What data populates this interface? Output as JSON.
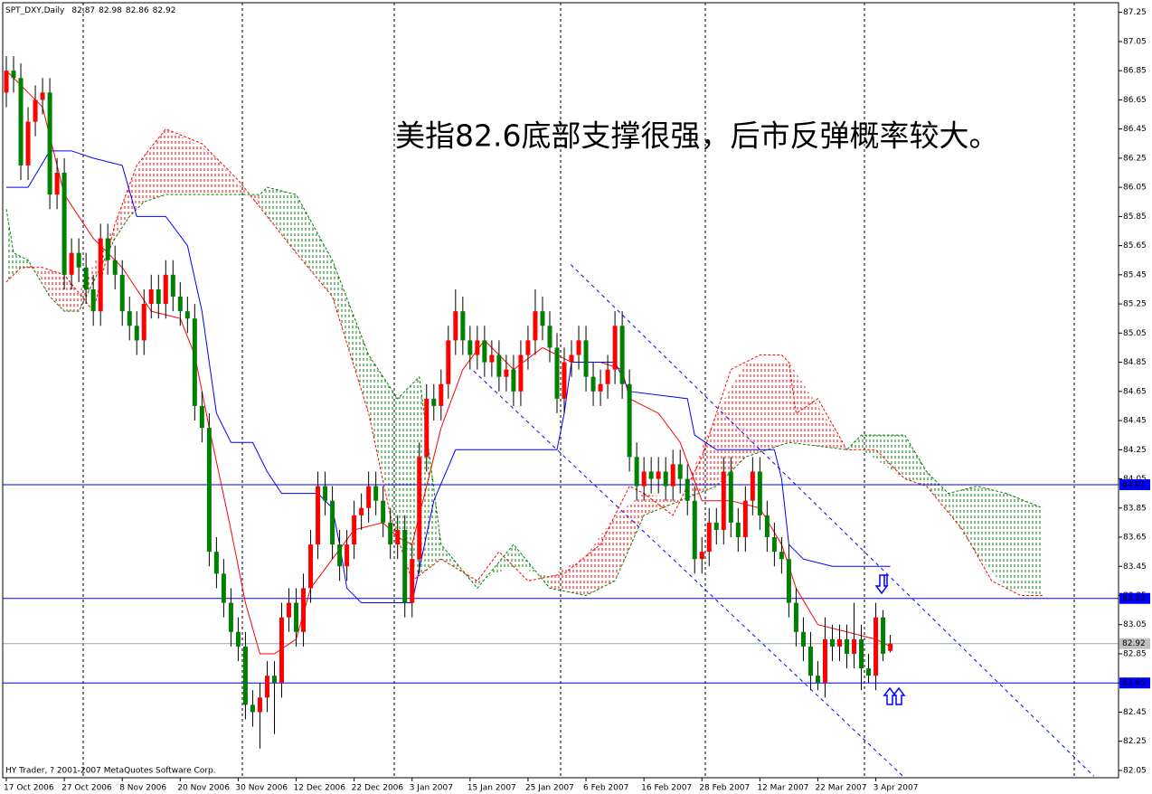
{
  "chart_data": {
    "type": "candlestick",
    "symbol": "SPT_DXY,Daily",
    "annotation": "美指82.6底部支撑很强，后市反弹概率较大。",
    "annotation_color": "#3a3ad8",
    "footer": "HY Trader, ? 2001-2007 MetaQuotes Software Corp.",
    "up_color": "#ff0000",
    "down_color": "#008000",
    "ylim": [
      82.0,
      87.31
    ],
    "yticks": [
      87.25,
      87.05,
      86.85,
      86.65,
      86.45,
      86.25,
      86.05,
      85.85,
      85.65,
      85.45,
      85.25,
      85.05,
      84.85,
      84.65,
      84.45,
      84.25,
      84.05,
      83.85,
      83.65,
      83.45,
      83.25,
      83.05,
      82.85,
      82.65,
      82.45,
      82.25,
      82.05
    ],
    "categories": [
      "17 Oct 2006",
      null,
      null,
      null,
      null,
      null,
      null,
      null,
      "27 Oct 2006",
      null,
      null,
      null,
      null,
      null,
      null,
      null,
      "8 Nov 2006",
      null,
      null,
      null,
      null,
      null,
      null,
      null,
      "20 Nov 2006",
      null,
      null,
      null,
      null,
      null,
      null,
      null,
      "30 Nov 2006",
      null,
      null,
      null,
      null,
      null,
      null,
      null,
      "12 Dec 2006",
      null,
      null,
      null,
      null,
      null,
      null,
      null,
      "22 Dec 2006",
      null,
      null,
      null,
      null,
      null,
      null,
      null,
      "3 Jan 2007",
      null,
      null,
      null,
      null,
      null,
      null,
      null,
      "15 Jan 2007",
      null,
      null,
      null,
      null,
      null,
      null,
      null,
      "25 Jan 2007",
      null,
      null,
      null,
      null,
      null,
      null,
      null,
      "6 Feb 2007",
      null,
      null,
      null,
      null,
      null,
      null,
      null,
      "16 Feb 2007",
      null,
      null,
      null,
      null,
      null,
      null,
      null,
      "28 Feb 2007",
      null,
      null,
      null,
      null,
      null,
      null,
      null,
      "12 Mar 2007",
      null,
      null,
      null,
      null,
      null,
      null,
      null,
      "22 Mar 2007",
      null,
      null,
      null,
      null,
      null,
      null,
      null,
      "3 Apr 2007",
      null,
      null
    ],
    "ohlc": [
      [
        86.7,
        86.95,
        86.6,
        86.85
      ],
      [
        86.85,
        86.95,
        86.7,
        86.8
      ],
      [
        86.8,
        86.9,
        86.1,
        86.2
      ],
      [
        86.2,
        86.6,
        86.1,
        86.5
      ],
      [
        86.5,
        86.75,
        86.4,
        86.65
      ],
      [
        86.65,
        86.8,
        86.55,
        86.7
      ],
      [
        86.7,
        86.8,
        85.9,
        86.0
      ],
      [
        86.0,
        86.25,
        85.9,
        86.15
      ],
      [
        86.15,
        86.25,
        85.35,
        85.45
      ],
      [
        85.45,
        85.7,
        85.35,
        85.6
      ],
      [
        85.6,
        85.7,
        85.4,
        85.5
      ],
      [
        85.5,
        85.6,
        85.25,
        85.35
      ],
      [
        85.35,
        85.45,
        85.1,
        85.2
      ],
      [
        85.2,
        85.8,
        85.1,
        85.7
      ],
      [
        85.7,
        85.8,
        85.45,
        85.55
      ],
      [
        85.55,
        85.65,
        85.35,
        85.45
      ],
      [
        85.45,
        85.55,
        85.1,
        85.2
      ],
      [
        85.2,
        85.3,
        85.0,
        85.1
      ],
      [
        85.1,
        85.2,
        84.9,
        85.0
      ],
      [
        85.0,
        85.35,
        84.9,
        85.25
      ],
      [
        85.25,
        85.45,
        85.15,
        85.35
      ],
      [
        85.35,
        85.45,
        85.15,
        85.25
      ],
      [
        85.25,
        85.55,
        85.15,
        85.45
      ],
      [
        85.45,
        85.55,
        85.2,
        85.3
      ],
      [
        85.3,
        85.4,
        85.1,
        85.2
      ],
      [
        85.2,
        85.3,
        85.05,
        85.15
      ],
      [
        85.15,
        85.25,
        84.45,
        84.55
      ],
      [
        84.55,
        84.65,
        84.3,
        84.4
      ],
      [
        84.4,
        84.5,
        83.45,
        83.55
      ],
      [
        83.55,
        83.65,
        83.3,
        83.4
      ],
      [
        83.4,
        83.5,
        83.1,
        83.2
      ],
      [
        83.2,
        83.3,
        82.9,
        83.0
      ],
      [
        83.0,
        83.1,
        82.8,
        82.9
      ],
      [
        82.9,
        83.0,
        82.4,
        82.5
      ],
      [
        82.5,
        82.6,
        82.35,
        82.45
      ],
      [
        82.45,
        82.65,
        82.2,
        82.55
      ],
      [
        82.55,
        82.8,
        82.45,
        82.7
      ],
      [
        82.7,
        82.8,
        82.3,
        82.65
      ],
      [
        82.65,
        83.2,
        82.55,
        83.1
      ],
      [
        83.1,
        83.3,
        83.0,
        83.2
      ],
      [
        83.2,
        83.3,
        82.9,
        83.0
      ],
      [
        83.0,
        83.4,
        82.9,
        83.3
      ],
      [
        83.3,
        83.7,
        83.2,
        83.6
      ],
      [
        83.6,
        84.1,
        83.5,
        84.0
      ],
      [
        84.0,
        84.1,
        83.8,
        83.9
      ],
      [
        83.9,
        84.0,
        83.5,
        83.6
      ],
      [
        83.6,
        83.7,
        83.35,
        83.45
      ],
      [
        83.45,
        83.7,
        83.35,
        83.6
      ],
      [
        83.6,
        83.9,
        83.5,
        83.8
      ],
      [
        83.8,
        83.95,
        83.7,
        83.85
      ],
      [
        83.85,
        84.1,
        83.75,
        84.0
      ],
      [
        84.0,
        84.1,
        83.8,
        83.9
      ],
      [
        83.9,
        84.0,
        83.65,
        83.75
      ],
      [
        83.75,
        83.85,
        83.5,
        83.6
      ],
      [
        83.6,
        83.8,
        83.5,
        83.7
      ],
      [
        83.7,
        83.8,
        83.1,
        83.2
      ],
      [
        83.2,
        83.6,
        83.1,
        83.5
      ],
      [
        83.5,
        84.3,
        83.4,
        84.2
      ],
      [
        84.2,
        84.7,
        84.1,
        84.6
      ],
      [
        84.6,
        84.7,
        84.45,
        84.55
      ],
      [
        84.55,
        84.8,
        84.45,
        84.7
      ],
      [
        84.7,
        85.1,
        84.6,
        85.0
      ],
      [
        85.0,
        85.35,
        84.9,
        85.2
      ],
      [
        85.2,
        85.3,
        84.9,
        85.0
      ],
      [
        85.0,
        85.1,
        84.8,
        84.9
      ],
      [
        84.9,
        85.1,
        84.8,
        85.0
      ],
      [
        85.0,
        85.1,
        84.75,
        84.85
      ],
      [
        84.85,
        85.0,
        84.75,
        84.9
      ],
      [
        84.9,
        85.0,
        84.65,
        84.75
      ],
      [
        84.75,
        84.9,
        84.65,
        84.8
      ],
      [
        84.8,
        84.9,
        84.55,
        84.65
      ],
      [
        84.65,
        85.0,
        84.55,
        84.9
      ],
      [
        84.9,
        85.1,
        84.8,
        85.0
      ],
      [
        85.0,
        85.35,
        84.9,
        85.2
      ],
      [
        85.2,
        85.3,
        85.0,
        85.1
      ],
      [
        85.1,
        85.2,
        84.85,
        84.95
      ],
      [
        84.95,
        85.05,
        84.5,
        84.6
      ],
      [
        84.6,
        84.95,
        84.5,
        84.85
      ],
      [
        84.85,
        85.0,
        84.75,
        84.9
      ],
      [
        84.9,
        85.1,
        84.8,
        85.0
      ],
      [
        85.0,
        85.1,
        84.65,
        84.75
      ],
      [
        84.75,
        84.85,
        84.55,
        84.65
      ],
      [
        84.65,
        84.8,
        84.55,
        84.7
      ],
      [
        84.7,
        84.9,
        84.6,
        84.8
      ],
      [
        84.8,
        85.2,
        84.7,
        85.1
      ],
      [
        85.1,
        85.2,
        84.6,
        84.7
      ],
      [
        84.7,
        84.8,
        84.1,
        84.2
      ],
      [
        84.2,
        84.3,
        83.9,
        84.0
      ],
      [
        84.0,
        84.2,
        83.9,
        84.1
      ],
      [
        84.1,
        84.2,
        83.95,
        84.05
      ],
      [
        84.05,
        84.2,
        83.95,
        84.1
      ],
      [
        84.1,
        84.2,
        83.9,
        84.0
      ],
      [
        84.0,
        84.25,
        83.9,
        84.15
      ],
      [
        84.15,
        84.25,
        83.95,
        84.05
      ],
      [
        84.05,
        84.15,
        83.8,
        83.9
      ],
      [
        83.9,
        84.0,
        83.4,
        83.5
      ],
      [
        83.5,
        83.65,
        83.4,
        83.55
      ],
      [
        83.55,
        83.85,
        83.45,
        83.75
      ],
      [
        83.75,
        83.85,
        83.6,
        83.7
      ],
      [
        83.7,
        84.2,
        83.6,
        84.1
      ],
      [
        84.1,
        84.2,
        83.65,
        83.75
      ],
      [
        83.75,
        83.85,
        83.55,
        83.65
      ],
      [
        83.65,
        84.0,
        83.55,
        83.9
      ],
      [
        83.9,
        84.2,
        83.8,
        84.1
      ],
      [
        84.1,
        84.2,
        83.7,
        83.8
      ],
      [
        83.8,
        83.9,
        83.55,
        83.65
      ],
      [
        83.65,
        83.75,
        83.45,
        83.55
      ],
      [
        83.55,
        83.65,
        83.4,
        83.5
      ],
      [
        83.5,
        83.6,
        83.1,
        83.2
      ],
      [
        83.2,
        83.3,
        82.9,
        83.0
      ],
      [
        83.0,
        83.1,
        82.8,
        82.9
      ],
      [
        82.9,
        83.0,
        82.6,
        82.7
      ],
      [
        82.7,
        82.8,
        82.6,
        82.65
      ],
      [
        82.65,
        83.1,
        82.55,
        82.95
      ],
      [
        82.95,
        83.05,
        82.8,
        82.9
      ],
      [
        82.9,
        83.05,
        82.8,
        82.95
      ],
      [
        82.95,
        83.05,
        82.75,
        82.85
      ],
      [
        82.85,
        83.2,
        82.75,
        82.95
      ],
      [
        82.95,
        83.05,
        82.6,
        82.75
      ],
      [
        82.75,
        82.85,
        82.65,
        82.7
      ],
      [
        82.7,
        83.2,
        82.6,
        83.1
      ],
      [
        83.1,
        83.15,
        82.8,
        82.85
      ],
      [
        82.87,
        82.98,
        82.86,
        82.92
      ]
    ],
    "indicators": [
      {
        "color": "#ff0000",
        "x": [
          0,
          5,
          8,
          12,
          16,
          20,
          24,
          26,
          28,
          31,
          33,
          35,
          37,
          40,
          42,
          45,
          48,
          52,
          54,
          56,
          58,
          60,
          63,
          66,
          70,
          74,
          78,
          82,
          85,
          86,
          90,
          93,
          96,
          100,
          104,
          107,
          109,
          112,
          116,
          120,
          122
        ],
        "values": [
          86.85,
          86.6,
          86.0,
          85.7,
          85.5,
          85.2,
          85.15,
          84.9,
          84.4,
          83.7,
          83.2,
          82.85,
          82.85,
          82.95,
          83.3,
          83.5,
          83.7,
          83.75,
          83.65,
          83.6,
          84.0,
          84.4,
          84.8,
          85.0,
          84.8,
          84.95,
          84.85,
          84.85,
          84.8,
          84.6,
          84.5,
          84.3,
          83.9,
          83.9,
          83.85,
          83.6,
          83.3,
          83.05,
          83.0,
          82.95,
          82.9
        ]
      },
      {
        "color": "#0000ff",
        "x": [
          0,
          3,
          6,
          9,
          12,
          16,
          18,
          22,
          25,
          27,
          29,
          31,
          34,
          36,
          38,
          43,
          45,
          46,
          47,
          49,
          54,
          56,
          59,
          62,
          70,
          76,
          77,
          78,
          84,
          86,
          94,
          95,
          98,
          106,
          107,
          108,
          110,
          114,
          118,
          122
        ],
        "values": [
          86.05,
          86.05,
          86.3,
          86.3,
          86.25,
          86.2,
          85.85,
          85.85,
          85.65,
          85.2,
          84.5,
          84.3,
          84.3,
          84.1,
          83.95,
          83.95,
          83.85,
          83.6,
          83.3,
          83.2,
          83.2,
          83.2,
          83.9,
          84.25,
          84.25,
          84.25,
          84.5,
          84.85,
          84.85,
          84.65,
          84.6,
          84.35,
          84.25,
          84.25,
          84.05,
          83.6,
          83.5,
          83.45,
          83.45,
          83.45
        ]
      }
    ],
    "cloud": {
      "span_a": {
        "color": "#008000",
        "x": [
          0,
          1,
          3,
          6,
          8,
          10,
          15,
          17,
          19,
          22,
          28,
          35,
          36,
          40,
          45,
          50,
          54,
          57,
          60,
          65,
          70,
          75,
          80,
          84,
          88,
          93,
          98,
          102,
          108,
          116,
          118,
          124,
          127,
          130,
          134,
          138,
          143
        ],
        "values": [
          85.9,
          85.6,
          85.55,
          85.3,
          85.2,
          85.2,
          85.7,
          85.85,
          85.95,
          86.0,
          86.0,
          86.0,
          86.05,
          86.0,
          85.55,
          84.9,
          84.6,
          84.75,
          83.6,
          83.3,
          83.6,
          83.3,
          83.25,
          83.35,
          83.8,
          83.9,
          84.0,
          84.2,
          84.3,
          84.25,
          84.35,
          84.35,
          84.1,
          83.95,
          84.0,
          83.95,
          83.85
        ]
      },
      "span_b": {
        "color": "#ff0000",
        "x": [
          0,
          2,
          5,
          8,
          12,
          15,
          18,
          22,
          27,
          32,
          36,
          40,
          45,
          50,
          53,
          56,
          60,
          65,
          68,
          72,
          77,
          82,
          86,
          88,
          92,
          96,
          100,
          104,
          107,
          108,
          109,
          112,
          116,
          120,
          124,
          127,
          132,
          136,
          140,
          143
        ],
        "values": [
          85.4,
          85.5,
          85.5,
          85.45,
          85.2,
          85.8,
          86.2,
          86.45,
          86.35,
          86.1,
          85.85,
          85.6,
          85.3,
          84.5,
          83.8,
          83.35,
          83.5,
          83.35,
          83.55,
          83.35,
          83.4,
          83.6,
          84.0,
          83.95,
          83.8,
          84.2,
          84.8,
          84.9,
          84.9,
          84.85,
          84.5,
          84.6,
          84.25,
          84.25,
          84.05,
          84.0,
          83.7,
          83.35,
          83.25,
          83.25
        ]
      }
    },
    "levels": [
      84.01,
      83.23,
      82.65
    ],
    "level_color": "#0000ff",
    "trendlines": [
      {
        "x": [
          77.9,
          150.1
        ],
        "values": [
          85.52,
          82.01
        ]
      },
      {
        "x": [
          64.5,
          123.75
        ],
        "values": [
          84.79,
          82.01
        ]
      }
    ],
    "trendline_color": "#0000ff"
  }
}
